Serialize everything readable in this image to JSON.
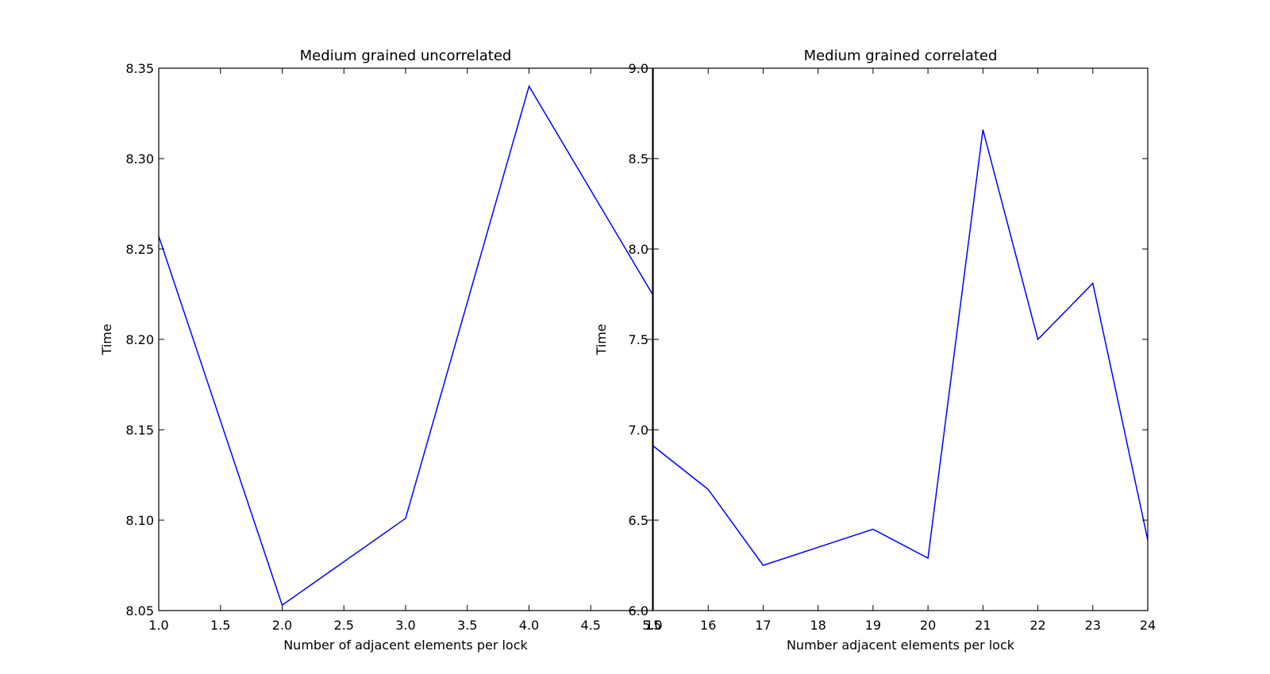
{
  "chart_data": [
    {
      "type": "line",
      "title": "Medium grained uncorrelated",
      "xlabel": "Number of adjacent elements per lock",
      "ylabel": "Time",
      "xlim": [
        1.0,
        5.0
      ],
      "ylim": [
        8.05,
        8.35
      ],
      "xticks": [
        "1.0",
        "1.5",
        "2.0",
        "2.5",
        "3.0",
        "3.5",
        "4.0",
        "4.5",
        "5.0"
      ],
      "yticks": [
        "8.05",
        "8.10",
        "8.15",
        "8.20",
        "8.25",
        "8.30",
        "8.35"
      ],
      "grid": false,
      "series": [
        {
          "color": "#0000ff",
          "x": [
            1,
            2,
            3,
            4,
            5
          ],
          "y": [
            8.257,
            8.053,
            8.101,
            8.34,
            8.225
          ]
        }
      ]
    },
    {
      "type": "line",
      "title": "Medium grained correlated",
      "xlabel": "Number adjacent elements per lock",
      "ylabel": "Time",
      "xlim": [
        15,
        24
      ],
      "ylim": [
        6.0,
        9.0
      ],
      "xticks": [
        "15",
        "16",
        "17",
        "18",
        "19",
        "20",
        "21",
        "22",
        "23",
        "24"
      ],
      "yticks": [
        "6.0",
        "6.5",
        "7.0",
        "7.5",
        "8.0",
        "8.5",
        "9.0"
      ],
      "grid": false,
      "series": [
        {
          "color": "#0000ff",
          "x": [
            15,
            16,
            17,
            18,
            19,
            20,
            21,
            22,
            23,
            24
          ],
          "y": [
            6.91,
            6.67,
            6.25,
            6.35,
            6.45,
            6.29,
            8.66,
            7.5,
            7.81,
            6.39
          ]
        }
      ]
    }
  ]
}
